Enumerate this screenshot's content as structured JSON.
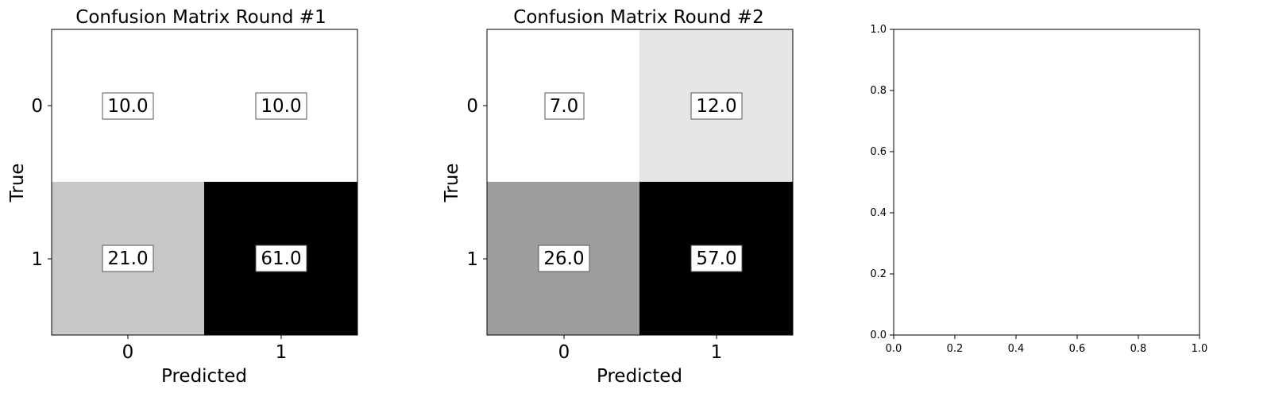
{
  "chart_data": [
    {
      "type": "heatmap",
      "title": "Confusion Matrix Round #1",
      "xlabel": "Predicted",
      "ylabel": "True",
      "x_categories": [
        "0",
        "1"
      ],
      "y_categories": [
        "0",
        "1"
      ],
      "values": [
        [
          10.0,
          10.0
        ],
        [
          21.0,
          61.0
        ]
      ],
      "value_labels": [
        [
          "10.0",
          "10.0"
        ],
        [
          "21.0",
          "61.0"
        ]
      ],
      "colormap": "Greys",
      "colorbar": false,
      "grid": false
    },
    {
      "type": "heatmap",
      "title": "Confusion Matrix Round #2",
      "xlabel": "Predicted",
      "ylabel": "True",
      "x_categories": [
        "0",
        "1"
      ],
      "y_categories": [
        "0",
        "1"
      ],
      "values": [
        [
          7.0,
          12.0
        ],
        [
          26.0,
          57.0
        ]
      ],
      "value_labels": [
        [
          "7.0",
          "12.0"
        ],
        [
          "26.0",
          "57.0"
        ]
      ],
      "colormap": "Greys",
      "colorbar": false,
      "grid": false
    },
    {
      "type": "scatter",
      "title": "",
      "xlabel": "",
      "ylabel": "",
      "series": [],
      "xlim": [
        0.0,
        1.0
      ],
      "ylim": [
        0.0,
        1.0
      ],
      "x_ticks": [
        "0.0",
        "0.2",
        "0.4",
        "0.6",
        "0.8",
        "1.0"
      ],
      "y_ticks": [
        "0.0",
        "0.2",
        "0.4",
        "0.6",
        "0.8",
        "1.0"
      ],
      "grid": false
    }
  ]
}
